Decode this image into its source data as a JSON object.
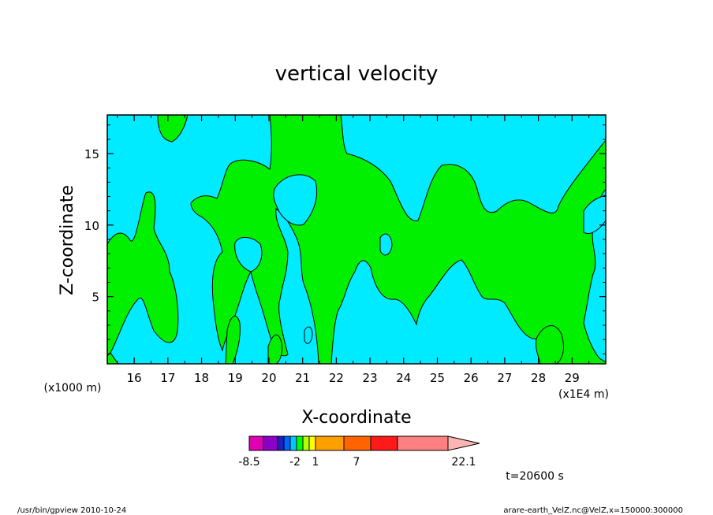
{
  "chart_data": {
    "type": "contour",
    "title": "vertical velocity",
    "xlabel": "X-coordinate",
    "ylabel": "Z-coordinate",
    "x_unit_left": "(x1000 m)",
    "x_unit_right": "(x1E4 m)",
    "xlim": [
      15.2,
      30.0
    ],
    "ylim": [
      0.3,
      17.7
    ],
    "x_ticks": [
      "16",
      "17",
      "18",
      "19",
      "20",
      "21",
      "22",
      "23",
      "24",
      "25",
      "26",
      "27",
      "28",
      "29"
    ],
    "y_ticks": [
      "5",
      "10",
      "15"
    ],
    "colorbar": {
      "labels": [
        "-8.5",
        "-2",
        "1",
        "7",
        "22.1"
      ],
      "colors": [
        "#e000b4",
        "#8c00c8",
        "#2020c0",
        "#0064ff",
        "#00c8ff",
        "#00ff00",
        "#b4ff00",
        "#ffff00",
        "#ffa000",
        "#ff6400",
        "#ff1a1a",
        "#ff8080",
        "#ffb4b4"
      ]
    },
    "field_colors": {
      "negative": "#00ebff",
      "positive": "#00f000"
    },
    "time_label": "t=20600 s"
  },
  "footer": {
    "left": "/usr/bin/gpview   2010-10-24",
    "right": "arare-earth_VelZ.nc@VelZ,x=150000:300000"
  }
}
